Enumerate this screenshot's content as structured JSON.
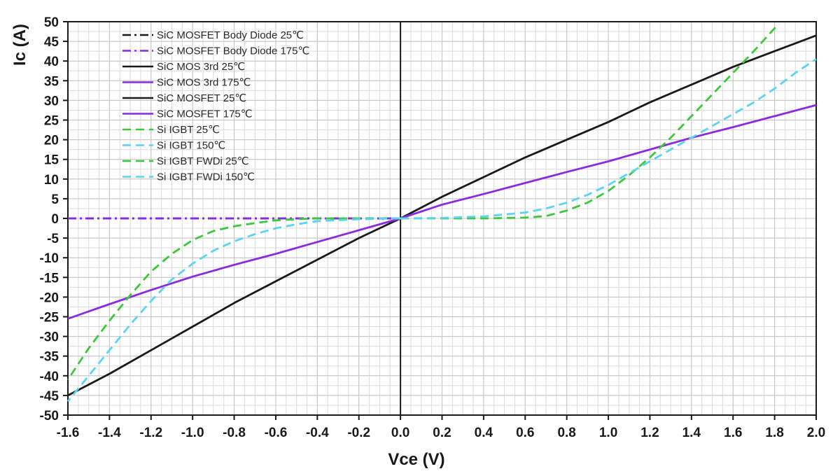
{
  "chart_data": {
    "type": "line",
    "title": "",
    "xlabel": "Vce (V)",
    "ylabel": "Ic (A)",
    "xlim": [
      -1.6,
      2.0
    ],
    "ylim": [
      -50,
      50
    ],
    "x_ticks": [
      -1.6,
      -1.4,
      -1.2,
      -1.0,
      -0.8,
      -0.6,
      -0.4,
      -0.2,
      0.0,
      0.2,
      0.4,
      0.6,
      0.8,
      1.0,
      1.2,
      1.4,
      1.6,
      1.8,
      2.0
    ],
    "x_tick_labels": [
      "-1.6",
      "-1.4",
      "-1.2",
      "-1.0",
      "-0.8",
      "-0.6",
      "-0.4",
      "-0.2",
      "0.0",
      "0.2",
      "0.4",
      "0.6",
      "0.8",
      "1.0",
      "1.2",
      "1.4",
      "1.6",
      "1.8",
      "2.0"
    ],
    "y_ticks": [
      50,
      45,
      40,
      35,
      30,
      25,
      20,
      15,
      10,
      5,
      0,
      -5,
      -10,
      -15,
      -20,
      -25,
      -30,
      -35,
      -40,
      -45,
      -50
    ],
    "y_tick_labels": [
      "50",
      "45",
      "40",
      "35",
      "30",
      "25",
      "20",
      "15",
      "10",
      "5",
      "0",
      "-5",
      "-10",
      "-15",
      "-20",
      "-25",
      "-30",
      "-35",
      "-40",
      "-45",
      "-50"
    ],
    "minor_grid": true,
    "legend_position": "top-left",
    "series": [
      {
        "name": "SiC MOSFET Body Diode 25℃",
        "color": "#1a1a1a",
        "dash": "dashdot",
        "x": [
          -1.6,
          -1.2,
          -0.8,
          -0.4,
          0.0
        ],
        "y": [
          0,
          0,
          0,
          0,
          0
        ]
      },
      {
        "name": "SiC MOSFET Body Diode 175℃",
        "color": "#8a2be2",
        "dash": "dashdot",
        "x": [
          -1.6,
          -1.2,
          -0.8,
          -0.4,
          0.0
        ],
        "y": [
          0,
          0,
          0,
          0,
          0
        ]
      },
      {
        "name": "SiC MOS 3rd  25℃",
        "color": "#1a1a1a",
        "dash": "solid",
        "x": [
          -1.6,
          -1.4,
          -1.2,
          -1.0,
          -0.8,
          -0.6,
          -0.4,
          -0.2,
          0.0
        ],
        "y": [
          -45,
          -39.5,
          -33.5,
          -27.5,
          -21.5,
          -16,
          -10.5,
          -5,
          0
        ]
      },
      {
        "name": "SiC MOS 3rd 175℃",
        "color": "#8a2be2",
        "dash": "solid",
        "x": [
          -1.6,
          -1.4,
          -1.2,
          -1.0,
          -0.8,
          -0.6,
          -0.4,
          -0.2,
          0.0
        ],
        "y": [
          -25.5,
          -21.8,
          -18.2,
          -14.8,
          -11.8,
          -9,
          -6,
          -3,
          0
        ]
      },
      {
        "name": "SiC MOSFET  25℃",
        "color": "#1a1a1a",
        "dash": "solid",
        "x": [
          0.0,
          0.2,
          0.4,
          0.6,
          0.8,
          1.0,
          1.2,
          1.4,
          1.6,
          1.8,
          2.0
        ],
        "y": [
          0,
          5.5,
          10.5,
          15.5,
          20,
          24.5,
          29.5,
          34,
          38.5,
          42.5,
          46.5
        ]
      },
      {
        "name": "SiC MOSFET 175℃",
        "color": "#8a2be2",
        "dash": "solid",
        "x": [
          0.0,
          0.2,
          0.4,
          0.6,
          0.8,
          1.0,
          1.2,
          1.4,
          1.6,
          1.8,
          2.0
        ],
        "y": [
          0,
          3.5,
          6.2,
          9,
          11.8,
          14.5,
          17.5,
          20.5,
          23.2,
          26,
          28.8
        ]
      },
      {
        "name": "Si IGBT 25℃",
        "color": "#3cc83c",
        "dash": "dashed",
        "x": [
          0.0,
          0.2,
          0.4,
          0.6,
          0.7,
          0.8,
          0.9,
          1.0,
          1.1,
          1.2,
          1.3,
          1.4,
          1.5,
          1.6,
          1.7,
          1.82
        ],
        "y": [
          0,
          0,
          0,
          0.2,
          0.6,
          2,
          4,
          7,
          11,
          15.5,
          20.5,
          26,
          31.5,
          37,
          42.5,
          49.5
        ]
      },
      {
        "name": "Si IGBT 150℃",
        "color": "#5ad4f0",
        "dash": "dashed",
        "x": [
          0.0,
          0.2,
          0.4,
          0.6,
          0.7,
          0.8,
          0.9,
          1.0,
          1.1,
          1.2,
          1.3,
          1.4,
          1.5,
          1.6,
          1.7,
          1.8,
          1.9,
          2.0
        ],
        "y": [
          0,
          0.1,
          0.5,
          1.5,
          2.5,
          4,
          6,
          8.5,
          11.5,
          14.5,
          17.5,
          20.5,
          23.5,
          26.5,
          29.5,
          33,
          37,
          40.5
        ]
      },
      {
        "name": "Si IGBT FWDi  25℃",
        "color": "#3cc83c",
        "dash": "dashed",
        "x": [
          0.0,
          -0.2,
          -0.4,
          -0.5,
          -0.6,
          -0.7,
          -0.8,
          -0.9,
          -1.0,
          -1.1,
          -1.2,
          -1.3,
          -1.4,
          -1.5,
          -1.6
        ],
        "y": [
          0,
          0,
          0,
          -0.2,
          -0.5,
          -1.2,
          -2,
          -3.2,
          -5.5,
          -9,
          -13.5,
          -19.5,
          -26,
          -33,
          -41
        ]
      },
      {
        "name": "Si IGBT FWDi  150℃",
        "color": "#5ad4f0",
        "dash": "dashed",
        "x": [
          0.0,
          -0.2,
          -0.4,
          -0.5,
          -0.6,
          -0.7,
          -0.8,
          -0.9,
          -1.0,
          -1.1,
          -1.2,
          -1.3,
          -1.4,
          -1.5,
          -1.6
        ],
        "y": [
          0,
          -0.2,
          -0.7,
          -1.5,
          -2.5,
          -4,
          -5.8,
          -8.2,
          -11.5,
          -15.5,
          -21,
          -27,
          -33.5,
          -40,
          -46.5
        ]
      }
    ]
  }
}
